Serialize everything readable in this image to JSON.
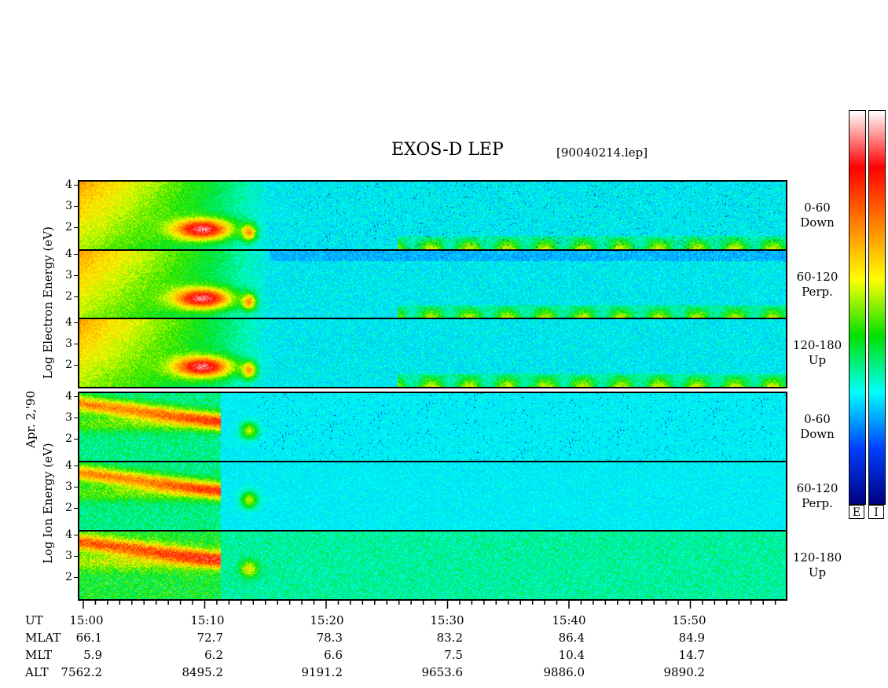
{
  "title": "EXOS-D LEP",
  "file_label": "[90040214.lep]",
  "date_label": "Apr. 2,'90",
  "electron_ylabel": "Log Electron Energy (eV)",
  "ion_ylabel": "Log Ion Energy (eV)",
  "colorbar_labels": [
    "E",
    "I"
  ],
  "colors": {
    "background_field": "#0a1fd8",
    "colormap": [
      "#ffffff",
      "#ff0000",
      "#ff8000",
      "#ffff00",
      "#00e000",
      "#00ffff",
      "#0040ff",
      "#000080"
    ]
  },
  "chart_data": {
    "type": "heatmap",
    "yticks": [
      "2",
      "3",
      "4"
    ],
    "x_axis": {
      "label": "UT",
      "ticks": [
        "15:00",
        "15:10",
        "15:20",
        "15:30",
        "15:40",
        "15:50"
      ]
    },
    "panels": [
      {
        "group": "Electron",
        "label_line1": "0-60",
        "label_line2": "Down"
      },
      {
        "group": "Electron",
        "label_line1": "60-120",
        "label_line2": "Perp."
      },
      {
        "group": "Electron",
        "label_line1": "120-180",
        "label_line2": "Up"
      },
      {
        "group": "Ion",
        "label_line1": "0-60",
        "label_line2": "Down"
      },
      {
        "group": "Ion",
        "label_line1": "60-120",
        "label_line2": "Perp."
      },
      {
        "group": "Ion",
        "label_line1": "120-180",
        "label_line2": "Up"
      }
    ],
    "orbit_table": [
      {
        "name": "UT",
        "values": [
          "15:00",
          "15:10",
          "15:20",
          "15:30",
          "15:40",
          "15:50"
        ]
      },
      {
        "name": "MLAT",
        "values": [
          "66.1",
          "72.7",
          "78.3",
          "83.2",
          "86.4",
          "84.9"
        ]
      },
      {
        "name": "MLT",
        "values": [
          "5.9",
          "6.2",
          "6.6",
          "7.5",
          "10.4",
          "14.7"
        ]
      },
      {
        "name": "ALT",
        "values": [
          "7562.2",
          "8495.2",
          "9191.2",
          "9653.6",
          "9886.0",
          "9890.2"
        ]
      }
    ]
  }
}
